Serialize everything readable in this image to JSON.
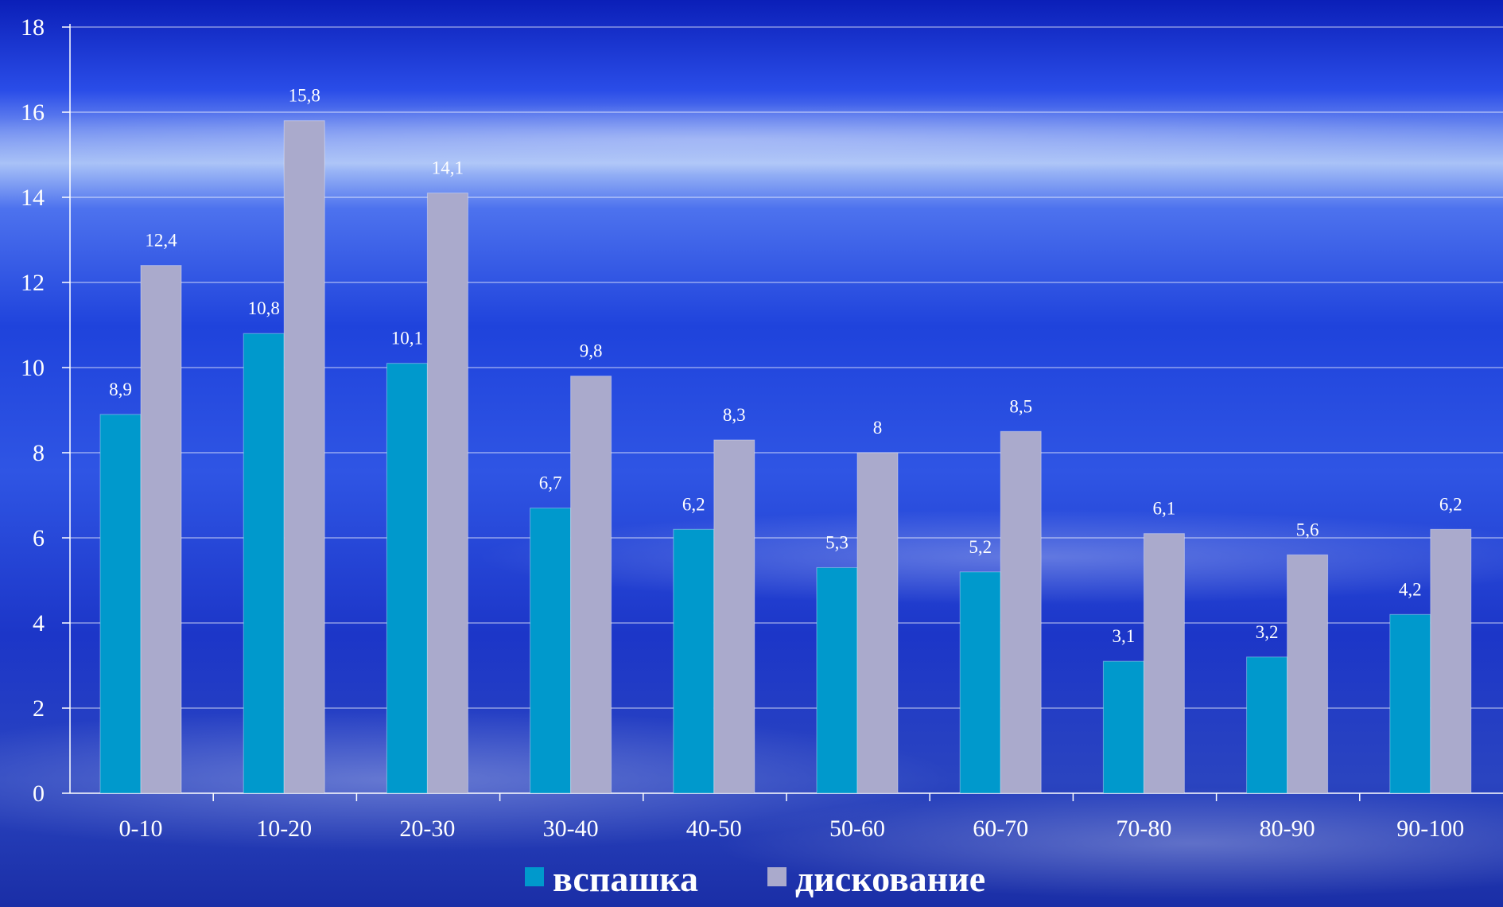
{
  "chart_data": {
    "type": "bar",
    "title": "",
    "xlabel": "",
    "ylabel": "",
    "categories": [
      "0-10",
      "10-20",
      "20-30",
      "30-40",
      "40-50",
      "50-60",
      "60-70",
      "70-80",
      "80-90",
      "90-100"
    ],
    "series": [
      {
        "name": "вспашка",
        "color": "#0099CC",
        "values": [
          8.9,
          10.8,
          10.1,
          6.7,
          6.2,
          5.3,
          5.2,
          3.1,
          3.2,
          4.2
        ],
        "value_labels": [
          "8,9",
          "10,8",
          "10,1",
          "6,7",
          "6,2",
          "5,3",
          "5,2",
          "3,1",
          "3,2",
          "4,2"
        ]
      },
      {
        "name": "дискование",
        "color": "#AAAACC",
        "values": [
          12.4,
          15.8,
          14.1,
          9.8,
          8.3,
          8,
          8.5,
          6.1,
          5.6,
          6.2
        ],
        "value_labels": [
          "12,4",
          "15,8",
          "14,1",
          "9,8",
          "8,3",
          "8",
          "8,5",
          "6,1",
          "5,6",
          "6,2"
        ]
      }
    ],
    "ylim": [
      0,
      18
    ],
    "yticks": [
      "0",
      "2",
      "4",
      "6",
      "8",
      "10",
      "12",
      "14",
      "16",
      "18"
    ],
    "grid": true,
    "legend_position": "bottom",
    "background_color": "#1a3fd6"
  }
}
